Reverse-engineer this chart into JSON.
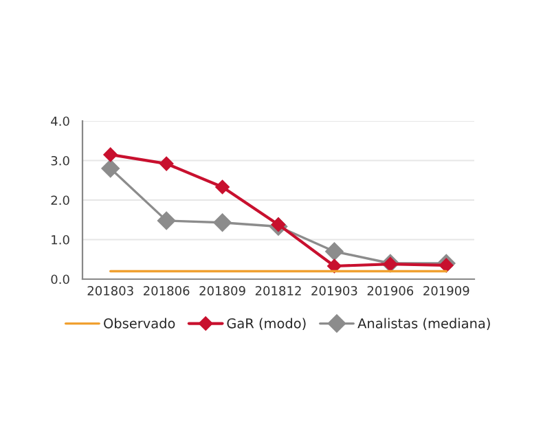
{
  "chart_data": {
    "type": "line",
    "categories": [
      "201803",
      "201806",
      "201809",
      "201812",
      "201903",
      "201906",
      "201909"
    ],
    "series": [
      {
        "name": "Observado",
        "color": "#f0a030",
        "marker": "none",
        "values": [
          0.2,
          0.2,
          0.2,
          0.2,
          0.2,
          0.2,
          0.2
        ]
      },
      {
        "name": "GaR (modo)",
        "color": "#c8102e",
        "values": [
          3.15,
          2.92,
          2.33,
          1.38,
          0.33,
          0.38,
          0.35
        ]
      },
      {
        "name": "Analistas (mediana)",
        "color": "#8c8c8c",
        "values": [
          2.8,
          1.48,
          1.43,
          1.33,
          0.7,
          0.4,
          0.4
        ]
      }
    ],
    "ylim": [
      0,
      4
    ],
    "yticks": [
      {
        "value": 0,
        "label": "0.0"
      },
      {
        "value": 1,
        "label": "1.0"
      },
      {
        "value": 2,
        "label": "2.0"
      },
      {
        "value": 3,
        "label": "3.0"
      },
      {
        "value": 4,
        "label": "4.0"
      }
    ],
    "grid": "y",
    "legend": "bottom",
    "marker": "diamond",
    "line_style": "solid"
  }
}
